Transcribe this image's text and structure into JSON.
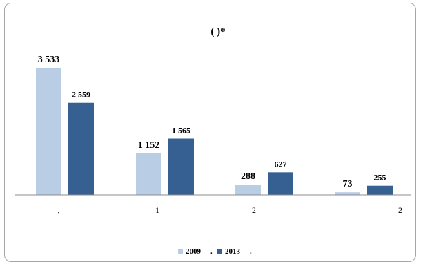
{
  "chart_data": {
    "type": "bar",
    "title": "(      )*",
    "categories": [
      ",",
      "1",
      "2",
      "2"
    ],
    "series": [
      {
        "name": "2009",
        "values": [
          3533,
          1152,
          288,
          73
        ],
        "labels": [
          "3 533",
          "1 152",
          "288",
          "73"
        ],
        "color": "#b9cde5"
      },
      {
        "name": "2013",
        "values": [
          2559,
          1565,
          627,
          255
        ],
        "labels": [
          "2 559",
          "1 565",
          "627",
          "255"
        ],
        "color": "#366092"
      }
    ],
    "legend_suffixes": [
      ".",
      "."
    ],
    "legend_position": "bottom",
    "ylim": [
      0,
      3533
    ],
    "grid": false
  }
}
